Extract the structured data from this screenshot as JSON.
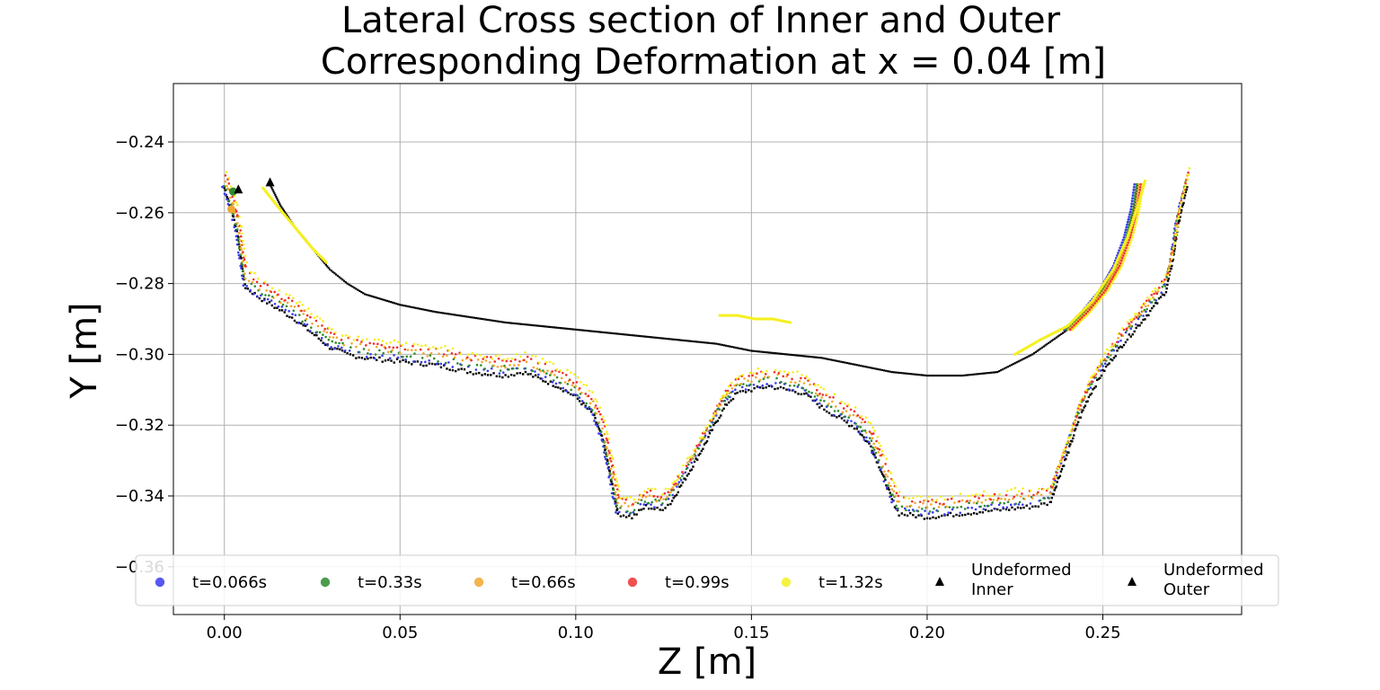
{
  "chart_data": {
    "type": "scatter",
    "title_line1": "Lateral Cross section of Inner and Outer",
    "title_line2": "Corresponding Deformation at x = 0.04 [m]",
    "xlabel": "Z [m]",
    "ylabel": "Y [m]",
    "xlim": [
      -0.0145,
      0.2895
    ],
    "ylim": [
      -0.3735,
      -0.2235
    ],
    "xticks": [
      0.0,
      0.05,
      0.1,
      0.15,
      0.2,
      0.25
    ],
    "xtick_labels": [
      "0.00",
      "0.05",
      "0.10",
      "0.15",
      "0.20",
      "0.25"
    ],
    "yticks": [
      -0.24,
      -0.26,
      -0.28,
      -0.3,
      -0.32,
      -0.34,
      -0.36
    ],
    "ytick_labels": [
      "−0.24",
      "−0.26",
      "−0.28",
      "−0.30",
      "−0.32",
      "−0.34",
      "−0.36"
    ],
    "grid": true,
    "legend_position": "lower center",
    "outer_profile": [
      [
        0.0,
        -0.25
      ],
      [
        0.002,
        -0.256
      ],
      [
        0.004,
        -0.264
      ],
      [
        0.005,
        -0.272
      ],
      [
        0.006,
        -0.278
      ],
      [
        0.01,
        -0.281
      ],
      [
        0.015,
        -0.284
      ],
      [
        0.02,
        -0.287
      ],
      [
        0.025,
        -0.291
      ],
      [
        0.03,
        -0.295
      ],
      [
        0.035,
        -0.297
      ],
      [
        0.04,
        -0.298
      ],
      [
        0.05,
        -0.299
      ],
      [
        0.06,
        -0.3
      ],
      [
        0.07,
        -0.302
      ],
      [
        0.08,
        -0.303
      ],
      [
        0.085,
        -0.302
      ],
      [
        0.09,
        -0.304
      ],
      [
        0.095,
        -0.306
      ],
      [
        0.1,
        -0.309
      ],
      [
        0.105,
        -0.314
      ],
      [
        0.108,
        -0.322
      ],
      [
        0.11,
        -0.332
      ],
      [
        0.112,
        -0.342
      ],
      [
        0.116,
        -0.343
      ],
      [
        0.12,
        -0.34
      ],
      [
        0.124,
        -0.341
      ],
      [
        0.127,
        -0.339
      ],
      [
        0.13,
        -0.334
      ],
      [
        0.133,
        -0.329
      ],
      [
        0.137,
        -0.322
      ],
      [
        0.14,
        -0.316
      ],
      [
        0.143,
        -0.311
      ],
      [
        0.146,
        -0.308
      ],
      [
        0.15,
        -0.307
      ],
      [
        0.155,
        -0.306
      ],
      [
        0.16,
        -0.307
      ],
      [
        0.165,
        -0.308
      ],
      [
        0.17,
        -0.312
      ],
      [
        0.175,
        -0.315
      ],
      [
        0.18,
        -0.318
      ],
      [
        0.184,
        -0.323
      ],
      [
        0.187,
        -0.33
      ],
      [
        0.19,
        -0.338
      ],
      [
        0.192,
        -0.342
      ],
      [
        0.2,
        -0.343
      ],
      [
        0.21,
        -0.342
      ],
      [
        0.22,
        -0.341
      ],
      [
        0.23,
        -0.34
      ],
      [
        0.235,
        -0.339
      ],
      [
        0.237,
        -0.333
      ],
      [
        0.24,
        -0.325
      ],
      [
        0.243,
        -0.316
      ],
      [
        0.246,
        -0.309
      ],
      [
        0.25,
        -0.302
      ],
      [
        0.255,
        -0.295
      ],
      [
        0.26,
        -0.289
      ],
      [
        0.265,
        -0.283
      ],
      [
        0.268,
        -0.279
      ],
      [
        0.27,
        -0.27
      ],
      [
        0.271,
        -0.263
      ],
      [
        0.272,
        -0.258
      ],
      [
        0.273,
        -0.254
      ],
      [
        0.274,
        -0.25
      ]
    ],
    "inner_profile": [
      [
        0.013,
        -0.252
      ],
      [
        0.016,
        -0.258
      ],
      [
        0.02,
        -0.264
      ],
      [
        0.025,
        -0.27
      ],
      [
        0.03,
        -0.276
      ],
      [
        0.035,
        -0.28
      ],
      [
        0.04,
        -0.283
      ],
      [
        0.05,
        -0.286
      ],
      [
        0.06,
        -0.288
      ],
      [
        0.08,
        -0.291
      ],
      [
        0.1,
        -0.293
      ],
      [
        0.12,
        -0.295
      ],
      [
        0.14,
        -0.297
      ],
      [
        0.15,
        -0.299
      ],
      [
        0.16,
        -0.3
      ],
      [
        0.17,
        -0.301
      ],
      [
        0.18,
        -0.303
      ],
      [
        0.19,
        -0.305
      ],
      [
        0.2,
        -0.306
      ],
      [
        0.21,
        -0.306
      ],
      [
        0.22,
        -0.305
      ],
      [
        0.23,
        -0.3
      ],
      [
        0.24,
        -0.293
      ],
      [
        0.245,
        -0.288
      ],
      [
        0.25,
        -0.282
      ],
      [
        0.254,
        -0.275
      ],
      [
        0.257,
        -0.267
      ],
      [
        0.259,
        -0.259
      ],
      [
        0.26,
        -0.252
      ]
    ],
    "yellow_fragments": [
      [
        [
          0.011,
          -0.253
        ],
        [
          0.015,
          -0.258
        ],
        [
          0.02,
          -0.264
        ],
        [
          0.025,
          -0.27
        ],
        [
          0.029,
          -0.274
        ]
      ],
      [
        [
          0.141,
          -0.289
        ],
        [
          0.146,
          -0.289
        ],
        [
          0.151,
          -0.29
        ],
        [
          0.156,
          -0.29
        ],
        [
          0.161,
          -0.291
        ]
      ],
      [
        [
          0.225,
          -0.3
        ],
        [
          0.232,
          -0.296
        ],
        [
          0.24,
          -0.292
        ],
        [
          0.247,
          -0.285
        ],
        [
          0.253,
          -0.276
        ],
        [
          0.257,
          -0.267
        ],
        [
          0.26,
          -0.258
        ],
        [
          0.262,
          -0.251
        ]
      ]
    ],
    "series": [
      {
        "name": "t=0.066s",
        "color": "#3a3af0",
        "y_offset": -0.002
      },
      {
        "name": "t=0.33s",
        "color": "#2e8b2e",
        "y_offset": -0.001
      },
      {
        "name": "t=0.66s",
        "color": "#f0a830",
        "y_offset": 0.0
      },
      {
        "name": "t=0.99s",
        "color": "#f03030",
        "y_offset": 0.001
      },
      {
        "name": "t=1.32s",
        "color": "#f5f020",
        "y_offset": 0.002
      }
    ],
    "undeformed": [
      {
        "name": "Undeformed\nInner",
        "color": "#000000"
      },
      {
        "name": "Undeformed\nOuter",
        "color": "#000000"
      }
    ],
    "legend": [
      {
        "label": "t=0.066s",
        "color": "#3a3af0",
        "marker": "circle"
      },
      {
        "label": "t=0.33s",
        "color": "#2e8b2e",
        "marker": "circle"
      },
      {
        "label": "t=0.66s",
        "color": "#f0a830",
        "marker": "circle"
      },
      {
        "label": "t=0.99s",
        "color": "#f03030",
        "marker": "circle"
      },
      {
        "label": "t=1.32s",
        "color": "#f5f020",
        "marker": "circle"
      },
      {
        "label": "Undeformed",
        "label2": "Inner",
        "color": "#000000",
        "marker": "triangle"
      },
      {
        "label": "Undeformed",
        "label2": "Outer",
        "color": "#000000",
        "marker": "triangle"
      }
    ]
  }
}
